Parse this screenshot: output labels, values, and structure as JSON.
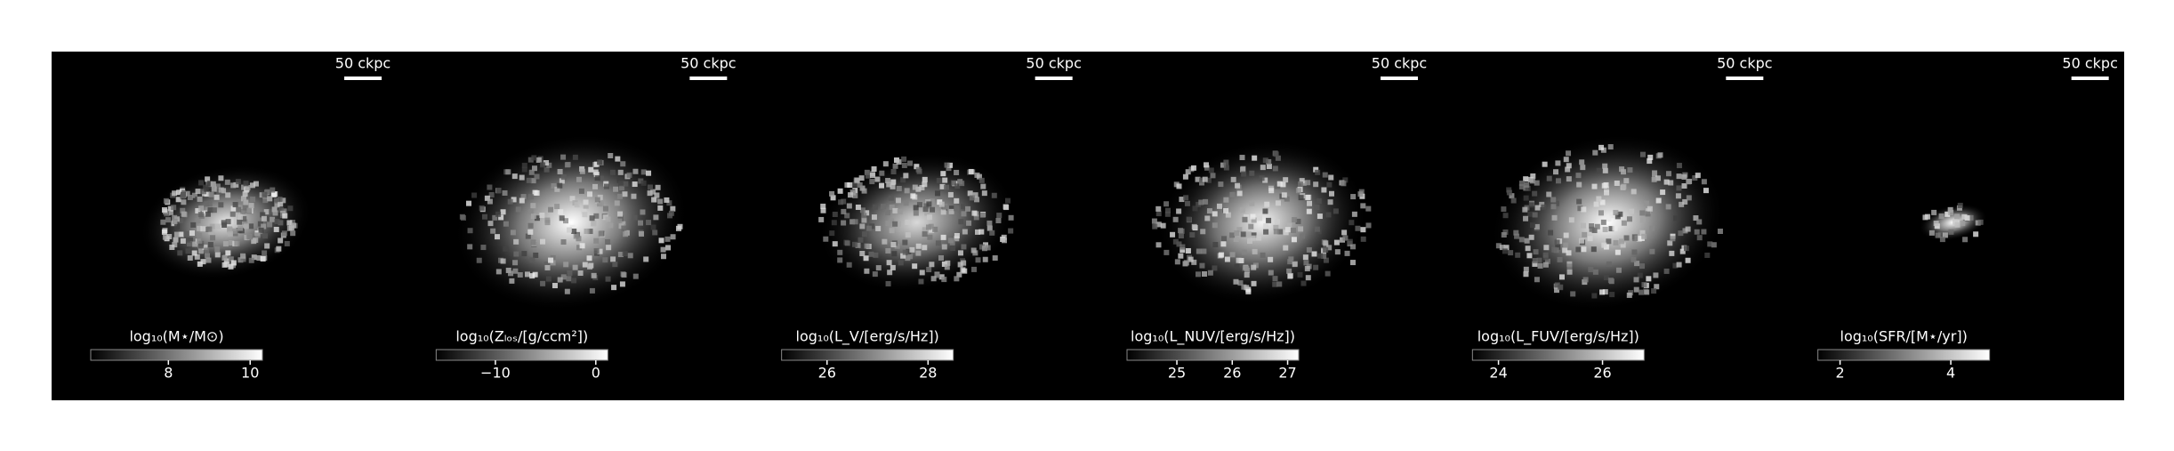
{
  "panels": [
    {
      "scale_bar": "50 ckpc",
      "colorbar": {
        "label": "log₁₀(M⋆/M⊙)",
        "lim": [
          6.1,
          10.3
        ],
        "ticks": [
          8,
          10
        ]
      }
    },
    {
      "scale_bar": "50 ckpc",
      "colorbar": {
        "label": "log₁₀(Zₗₒₛ/[g/ccm²])",
        "lim": [
          -15.9,
          1.2
        ],
        "ticks": [
          {
            "value": -10,
            "label": "−10"
          },
          0
        ]
      }
    },
    {
      "scale_bar": "50 ckpc",
      "colorbar": {
        "label": "log₁₀(L_V/[erg/s/Hz])",
        "lim": [
          25.1,
          28.5
        ],
        "ticks": [
          26,
          28
        ]
      }
    },
    {
      "scale_bar": "50 ckpc",
      "colorbar": {
        "label": "log₁₀(L_NUV/[erg/s/Hz])",
        "lim": [
          24.1,
          27.2
        ],
        "ticks": [
          25,
          26,
          27
        ]
      }
    },
    {
      "scale_bar": "50 ckpc",
      "colorbar": {
        "label": "log₁₀(L_FUV/[erg/s/Hz])",
        "lim": [
          23.5,
          26.8
        ],
        "ticks": [
          24,
          26
        ]
      }
    },
    {
      "scale_bar": "50 ckpc",
      "colorbar": {
        "label": "log₁₀(SFR/[M⋆/yr])",
        "lim": [
          1.6,
          4.7
        ],
        "ticks": [
          2,
          4
        ]
      }
    }
  ]
}
